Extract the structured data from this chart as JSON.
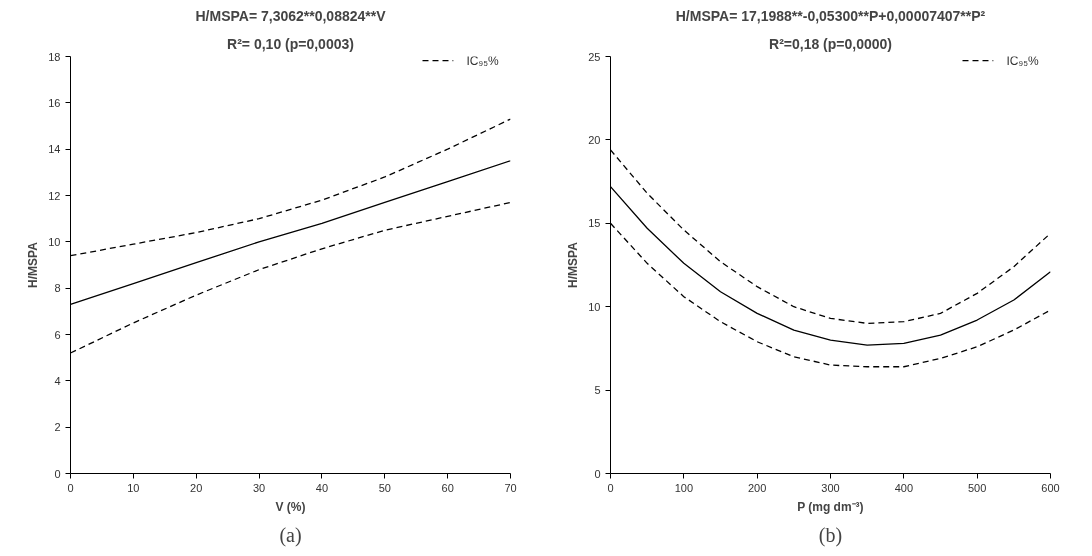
{
  "chart_data": [
    {
      "type": "line",
      "title": "H/MSPA= 7,3062**0,08824**V",
      "subtitle": "R²= 0,10 (p=0,0003)",
      "xlabel": "V (%)",
      "ylabel": "H/MSPA",
      "annotations": [
        "(a)"
      ],
      "x": [
        0,
        10,
        20,
        30,
        40,
        50,
        60,
        70
      ],
      "xlim": [
        0,
        70
      ],
      "xticks": [
        0,
        10,
        20,
        30,
        40,
        50,
        60,
        70
      ],
      "ylim": [
        0,
        18
      ],
      "yticks": [
        0,
        2,
        4,
        6,
        8,
        10,
        12,
        14,
        16,
        18
      ],
      "grid": false,
      "legend": "top right",
      "series": [
        {
          "color": "#000000",
          "line_style": "solid",
          "values": [
            7.3,
            8.2,
            9.1,
            10.0,
            10.8,
            11.7,
            12.6,
            13.5
          ]
        },
        {
          "name": "IC₉₅%",
          "color": "#000000",
          "line_style": "dashed",
          "values": [
            9.4,
            9.9,
            10.4,
            11.0,
            11.8,
            12.8,
            14.0,
            15.3
          ]
        },
        {
          "color": "#000000",
          "line_style": "dashed",
          "values": [
            5.2,
            6.5,
            7.7,
            8.8,
            9.7,
            10.5,
            11.1,
            11.7
          ]
        }
      ]
    },
    {
      "type": "line",
      "title": "H/MSPA= 17,1988**-0,05300**P+0,00007407**P²",
      "subtitle": "R²=0,18 (p=0,0000)",
      "xlabel": "P (mg dm⁻³)",
      "ylabel": "H/MSPA",
      "annotations": [
        "(b)"
      ],
      "x": [
        0,
        50,
        100,
        150,
        200,
        250,
        300,
        350,
        400,
        450,
        500,
        550,
        600
      ],
      "xlim": [
        0,
        600
      ],
      "xticks": [
        0,
        100,
        200,
        300,
        400,
        500,
        600
      ],
      "ylim": [
        0,
        25
      ],
      "yticks": [
        0,
        5,
        10,
        15,
        20,
        25
      ],
      "grid": false,
      "legend": "top right",
      "series": [
        {
          "color": "#000000",
          "line_style": "solid",
          "values": [
            17.2,
            14.7,
            12.6,
            10.9,
            9.6,
            8.6,
            8.0,
            7.7,
            7.8,
            8.3,
            9.2,
            10.4,
            12.1
          ]
        },
        {
          "name": "IC₉₅%",
          "color": "#000000",
          "line_style": "dashed",
          "values": [
            19.4,
            16.8,
            14.6,
            12.7,
            11.2,
            10.0,
            9.3,
            9.0,
            9.1,
            9.6,
            10.8,
            12.4,
            14.4
          ]
        },
        {
          "color": "#000000",
          "line_style": "dashed",
          "values": [
            15.0,
            12.6,
            10.6,
            9.1,
            7.9,
            7.0,
            6.5,
            6.4,
            6.4,
            6.9,
            7.6,
            8.6,
            9.8
          ]
        }
      ]
    }
  ]
}
